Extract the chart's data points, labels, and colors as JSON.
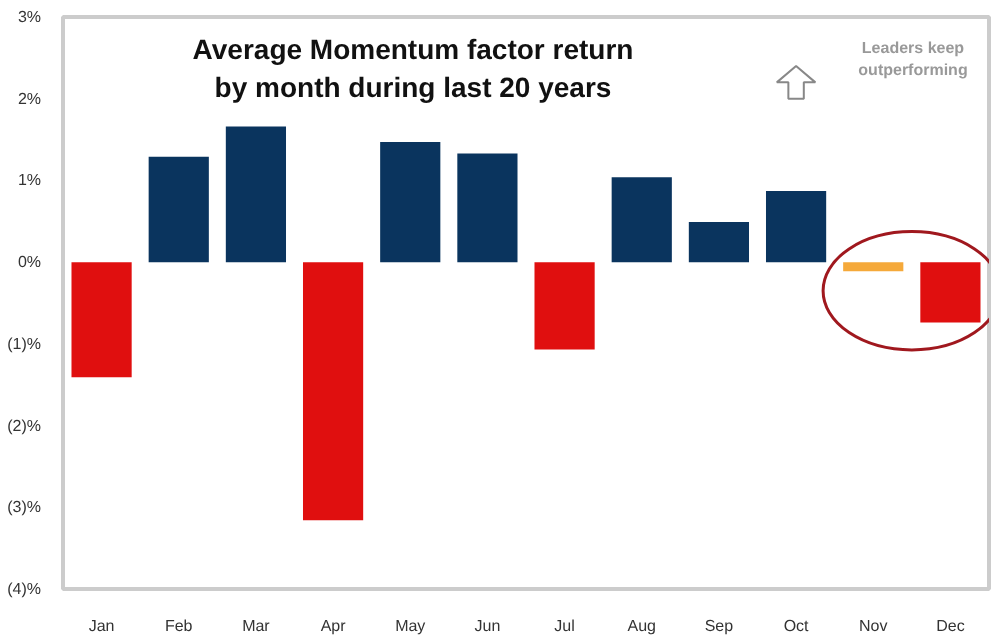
{
  "chart_data": {
    "type": "bar",
    "title": "Average Momentum factor return\nby month during last 20 years",
    "categories": [
      "Jan",
      "Feb",
      "Mar",
      "Apr",
      "May",
      "Jun",
      "Jul",
      "Aug",
      "Sep",
      "Oct",
      "Nov",
      "Dec"
    ],
    "values": [
      -1.41,
      1.29,
      1.66,
      -3.16,
      1.47,
      1.33,
      -1.07,
      1.04,
      0.49,
      0.87,
      -0.11,
      -0.74
    ],
    "colors": [
      "#e00f0f",
      "#0a345e",
      "#0a345e",
      "#e00f0f",
      "#0a345e",
      "#0a345e",
      "#e00f0f",
      "#0a345e",
      "#0a345e",
      "#0a345e",
      "#f5a93a",
      "#e00f0f"
    ],
    "ylim": [
      -4,
      3
    ],
    "yticks": [
      {
        "value": -4,
        "label": "(4)%"
      },
      {
        "value": -3,
        "label": "(3)%"
      },
      {
        "value": -2,
        "label": "(2)%"
      },
      {
        "value": -1,
        "label": "(1)%"
      },
      {
        "value": 0,
        "label": "0%"
      },
      {
        "value": 1,
        "label": "1%"
      },
      {
        "value": 2,
        "label": "2%"
      },
      {
        "value": 3,
        "label": "3%"
      }
    ],
    "annotations": [
      "Leaders keep\noutperforming"
    ],
    "grid": false
  }
}
